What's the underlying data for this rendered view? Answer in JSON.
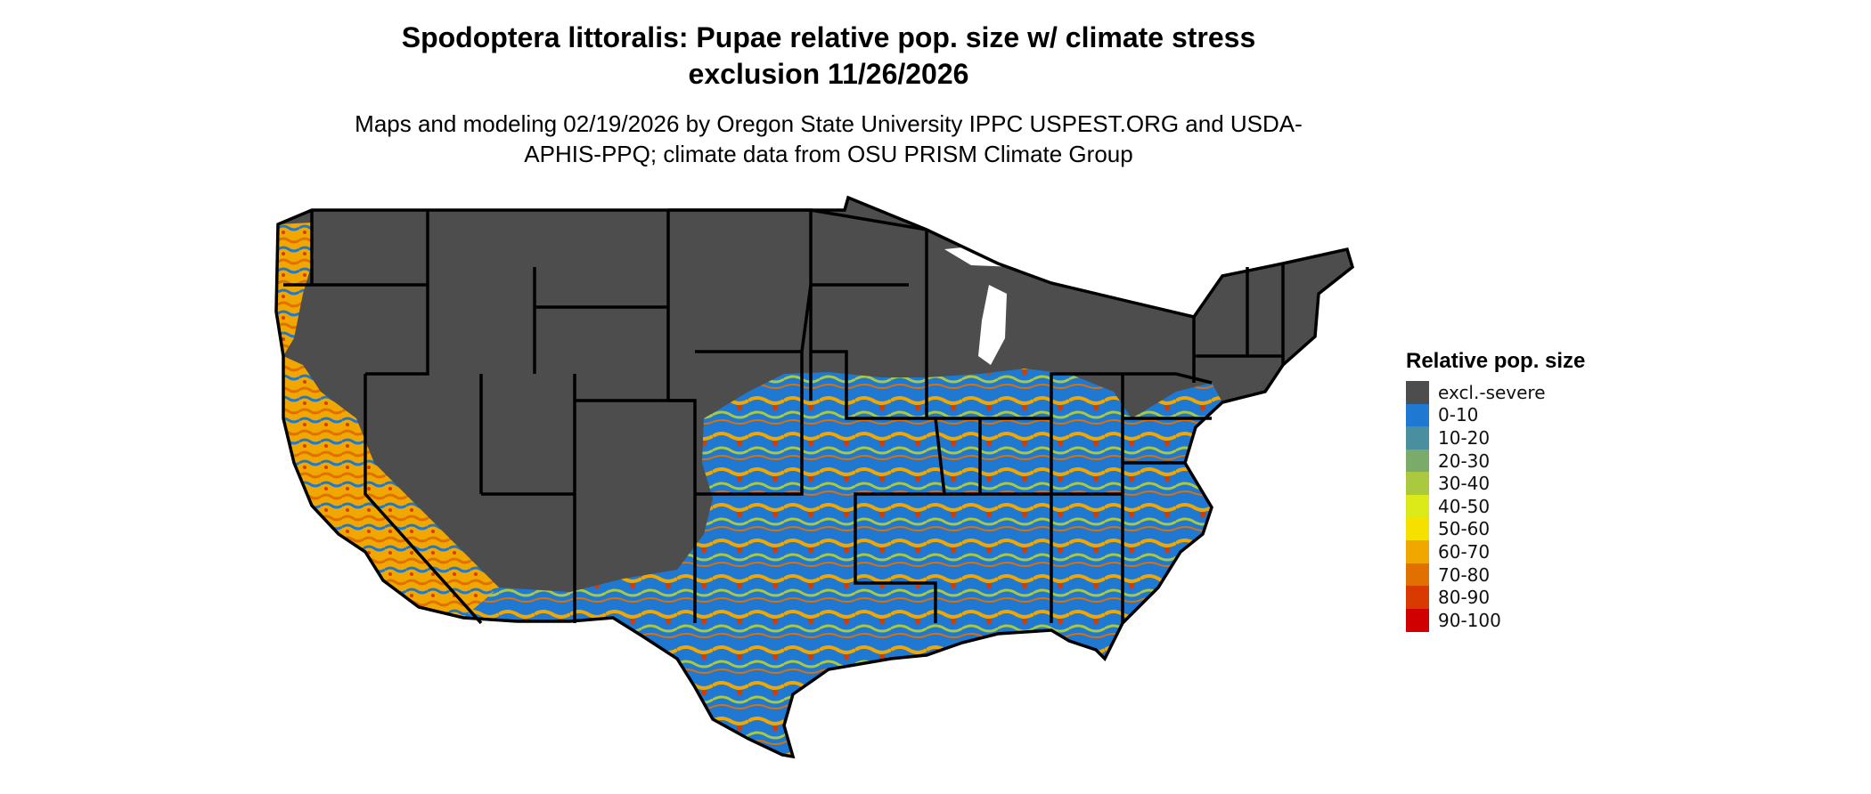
{
  "title": "Spodoptera littoralis: Pupae relative pop. size w/ climate stress exclusion 11/26/2026",
  "subtitle": "Maps and modeling 02/19/2026 by Oregon State University IPPC USPEST.ORG and USDA-APHIS-PPQ; climate data from OSU PRISM Climate Group",
  "legend": {
    "title": "Relative pop. size",
    "items": [
      {
        "label": "excl.-severe",
        "color": "#4d4d4d"
      },
      {
        "label": "0-10",
        "color": "#1f78d1"
      },
      {
        "label": "10-20",
        "color": "#4a8fa0"
      },
      {
        "label": "20-30",
        "color": "#7bab6a"
      },
      {
        "label": "30-40",
        "color": "#abc93e"
      },
      {
        "label": "40-50",
        "color": "#dcea1a"
      },
      {
        "label": "50-60",
        "color": "#f5e000"
      },
      {
        "label": "60-70",
        "color": "#f0a800"
      },
      {
        "label": "70-80",
        "color": "#e07000"
      },
      {
        "label": "80-90",
        "color": "#d83a00"
      },
      {
        "label": "90-100",
        "color": "#d00000"
      }
    ]
  }
}
